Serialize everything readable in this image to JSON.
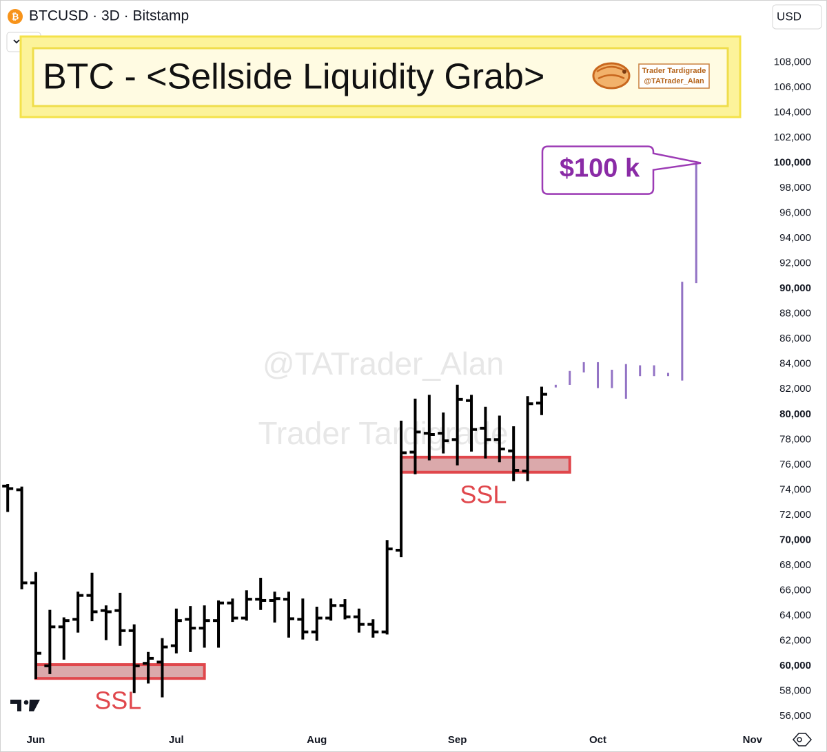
{
  "chart_data": {
    "type": "ohlc",
    "title": "BTC - <Sellside Liquidity Grab>",
    "subtitle": "BTCUSD · 3D · Bitstamp",
    "currency": "USD",
    "indicator_count": 4,
    "badge": [
      "Trader Tardigrade",
      "@TATrader_Alan"
    ],
    "watermarks": [
      "@TATrader_Alan",
      "Trader Tardigrade"
    ],
    "categories": [
      null,
      null,
      "Jun",
      null,
      null,
      null,
      null,
      null,
      null,
      null,
      null,
      null,
      "Jul",
      null,
      null,
      null,
      null,
      null,
      null,
      null,
      null,
      null,
      "Aug",
      null,
      null,
      null,
      null,
      null,
      null,
      null,
      null,
      null,
      "Sep",
      null,
      null,
      null,
      null,
      null,
      null,
      null,
      null,
      null,
      "Oct",
      null,
      null,
      null,
      null,
      null,
      null,
      null,
      null,
      null,
      null,
      "Nov"
    ],
    "series": [
      {
        "color": "#000000",
        "open": [
          74300,
          74000,
          66600,
          60000,
          63100,
          63700,
          65600,
          64400,
          64400,
          62800,
          60200,
          60300,
          61600,
          63700,
          63000,
          63600,
          65000,
          63800,
          65300,
          65200,
          65300,
          63700,
          62700,
          63800,
          64800,
          63900,
          63300,
          62700,
          69200,
          77000,
          78500,
          78500,
          78000,
          81100,
          78900,
          78000,
          77100,
          75500,
          80900,
          null,
          null,
          null,
          null,
          null,
          null,
          null,
          null,
          null,
          null,
          null,
          null,
          null,
          null,
          null
        ],
        "high": [
          74400,
          74200,
          67400,
          64400,
          63800,
          65850,
          67350,
          64750,
          65750,
          63250,
          61050,
          62150,
          64500,
          64700,
          64750,
          65150,
          65300,
          65950,
          66950,
          65850,
          65850,
          65300,
          64650,
          65300,
          65250,
          64500,
          63650,
          69950,
          79450,
          81200,
          81500,
          80100,
          82300,
          81500,
          80550,
          79850,
          79000,
          81400,
          82150,
          null,
          null,
          null,
          null,
          null,
          null,
          null,
          null,
          null,
          null,
          null,
          null,
          null,
          null,
          null
        ],
        "low": [
          72300,
          66150,
          59000,
          59400,
          60550,
          62700,
          63600,
          62100,
          61650,
          57900,
          58650,
          57550,
          61050,
          61150,
          61500,
          61500,
          63550,
          63650,
          64500,
          63500,
          62300,
          62150,
          62050,
          63650,
          63750,
          62700,
          62300,
          62550,
          68700,
          75300,
          76400,
          76950,
          76000,
          77100,
          76550,
          76250,
          74750,
          74750,
          80000,
          null,
          null,
          null,
          null,
          null,
          null,
          null,
          null,
          null,
          null,
          null,
          null,
          null,
          null,
          null
        ],
        "close": [
          74100,
          66600,
          61000,
          63100,
          63600,
          65600,
          64300,
          64300,
          62800,
          60000,
          60600,
          61500,
          63600,
          63000,
          63600,
          65000,
          63800,
          65300,
          65200,
          65350,
          63750,
          62700,
          63800,
          64800,
          63900,
          63300,
          62700,
          69300,
          76950,
          78600,
          78400,
          77900,
          81200,
          78800,
          78000,
          77250,
          75550,
          80850,
          81600,
          null,
          null,
          null,
          null,
          null,
          null,
          null,
          null,
          null,
          null,
          null,
          null,
          null,
          null,
          null
        ]
      },
      {
        "color": "#9272c4",
        "high": [
          null,
          null,
          null,
          null,
          null,
          null,
          null,
          null,
          null,
          null,
          null,
          null,
          null,
          null,
          null,
          null,
          null,
          null,
          null,
          null,
          null,
          null,
          null,
          null,
          null,
          null,
          null,
          null,
          null,
          null,
          null,
          null,
          null,
          null,
          null,
          null,
          null,
          null,
          null,
          82300,
          83400,
          84100,
          84100,
          83500,
          83950,
          83850,
          83850,
          83250,
          90500,
          99850,
          null,
          null,
          null,
          null
        ],
        "low": [
          null,
          null,
          null,
          null,
          null,
          null,
          null,
          null,
          null,
          null,
          null,
          null,
          null,
          null,
          null,
          null,
          null,
          null,
          null,
          null,
          null,
          null,
          null,
          null,
          null,
          null,
          null,
          null,
          null,
          null,
          null,
          null,
          null,
          null,
          null,
          null,
          null,
          null,
          null,
          82200,
          82400,
          83400,
          82150,
          82150,
          81300,
          83100,
          83100,
          83100,
          82750,
          90500,
          null,
          null,
          null,
          null
        ]
      }
    ],
    "zones": [
      {
        "label": "SSL",
        "start": 2,
        "end": 14,
        "low": 59000,
        "high": 60100
      },
      {
        "label": "SSL",
        "start": 28,
        "end": 40,
        "low": 75400,
        "high": 76600
      }
    ],
    "callout": {
      "text": "$100 k",
      "value": 100000
    },
    "ylim": [
      54900,
      110500
    ],
    "yticks": [
      {
        "value": 56000,
        "label": "56,000"
      },
      {
        "value": 58000,
        "label": "58,000"
      },
      {
        "value": 60000,
        "label": "60,000"
      },
      {
        "value": 62000,
        "label": "62,000"
      },
      {
        "value": 64000,
        "label": "64,000"
      },
      {
        "value": 66000,
        "label": "66,000"
      },
      {
        "value": 68000,
        "label": "68,000"
      },
      {
        "value": 70000,
        "label": "70,000"
      },
      {
        "value": 72000,
        "label": "72,000"
      },
      {
        "value": 74000,
        "label": "74,000"
      },
      {
        "value": 76000,
        "label": "76,000"
      },
      {
        "value": 78000,
        "label": "78,000"
      },
      {
        "value": 80000,
        "label": "80,000"
      },
      {
        "value": 82000,
        "label": "82,000"
      },
      {
        "value": 84000,
        "label": "84,000"
      },
      {
        "value": 86000,
        "label": "86,000"
      },
      {
        "value": 88000,
        "label": "88,000"
      },
      {
        "value": 90000,
        "label": "90,000"
      },
      {
        "value": 92000,
        "label": "92,000"
      },
      {
        "value": 94000,
        "label": "94,000"
      },
      {
        "value": 96000,
        "label": "96,000"
      },
      {
        "value": 98000,
        "label": "98,000"
      },
      {
        "value": 100000,
        "label": "100,000"
      },
      {
        "value": 102000,
        "label": "102,000"
      },
      {
        "value": 104000,
        "label": "104,000"
      },
      {
        "value": 106000,
        "label": "106,000"
      },
      {
        "value": 108000,
        "label": "108,000"
      }
    ],
    "grid": false
  }
}
